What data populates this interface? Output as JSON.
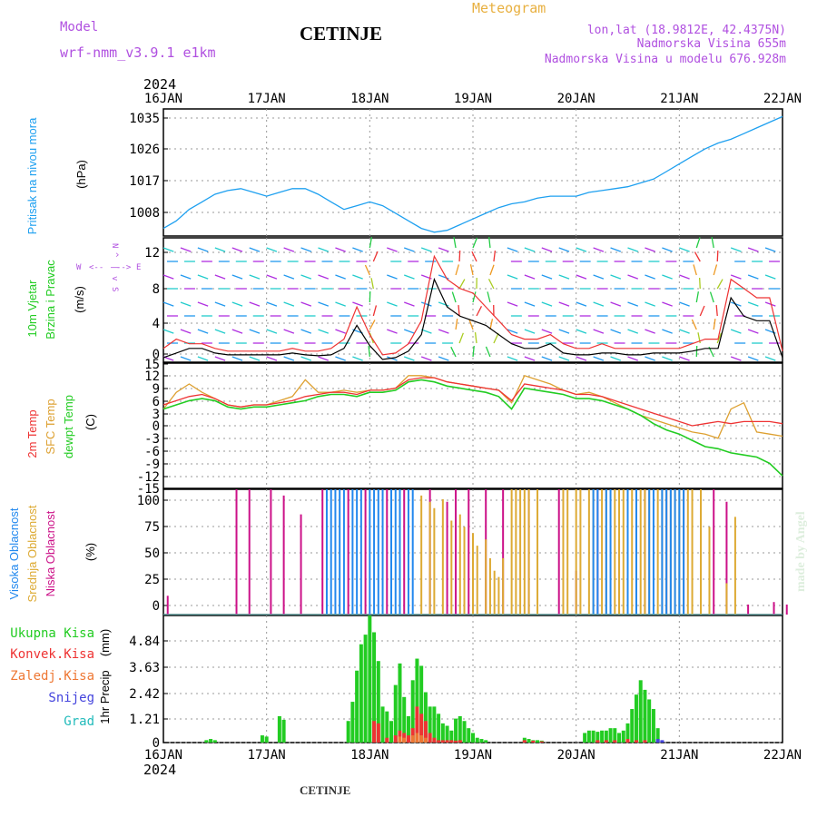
{
  "header": {
    "model_label": "Model",
    "model_name": "wrf-nmm_v3.9.1  e1km",
    "title": "CETINJE",
    "subtitle": "Meteogram",
    "lonlat": "lon,lat (18.9812E, 42.4375N)",
    "altitude": "Nadmorska Visina 655m",
    "model_altitude": "Nadmorska Visina u modelu 676.928m",
    "year": "2024",
    "footer": "CETINJE",
    "watermark": "made by Angel"
  },
  "colors": {
    "pressure": "#1ea0f0",
    "t2m": "#ee3333",
    "tsfc": "#dda030",
    "dewpoint": "#22cc22",
    "cloud_high": "#2288ee",
    "cloud_mid": "#ddaa33",
    "cloud_low": "#cc1188",
    "precip_total": "#22cc22",
    "precip_conv": "#ee3333",
    "precip_frozen": "#ee7733",
    "snow": "#4444dd",
    "hail": "#22bbbb",
    "header_purple": "#b050e0",
    "header_orange": "#e8b040"
  },
  "chart_data": [
    {
      "id": "pressure",
      "type": "line",
      "ylabel_name": "Pritisak na nivou mora",
      "ylabel_unit": "(hPa)",
      "x_ticks": [
        "16JAN",
        "17JAN",
        "18JAN",
        "19JAN",
        "20JAN",
        "21JAN",
        "22JAN"
      ],
      "yticks": [
        "1035",
        "1026",
        "1017",
        "1008"
      ],
      "ylim": [
        1003,
        1036.5
      ],
      "x": [
        0,
        3,
        6,
        9,
        12,
        15,
        18,
        21,
        24,
        27,
        30,
        33,
        36,
        39,
        42,
        45,
        48,
        51,
        54,
        57,
        60,
        63,
        66,
        69,
        72,
        75,
        78,
        81,
        84,
        87,
        90,
        93,
        96,
        99,
        102,
        105,
        108,
        111,
        114,
        117,
        120,
        123,
        126,
        129,
        132,
        135,
        138,
        141,
        144
      ],
      "series": [
        {
          "values": [
            1005,
            1007,
            1010,
            1012,
            1014,
            1015,
            1015.5,
            1014.5,
            1013.5,
            1014.5,
            1015.5,
            1015.5,
            1014,
            1012,
            1010,
            1011,
            1012,
            1011,
            1009,
            1007,
            1005,
            1004,
            1004.5,
            1006,
            1007.5,
            1009,
            1010.5,
            1011.5,
            1012,
            1013,
            1013.5,
            1013.5,
            1013.5,
            1014.5,
            1015,
            1015.5,
            1016,
            1017,
            1018,
            1020,
            1022,
            1024,
            1026,
            1027.5,
            1028.5,
            1030,
            1031.5,
            1033,
            1034.5
          ]
        }
      ]
    },
    {
      "id": "wind",
      "type": "line",
      "ylabel_name_1": "10m Vjetar",
      "ylabel_name_2": "Brzina i Pravac",
      "ylabel_unit": "(m/s)",
      "compass": [
        "N",
        "^",
        "|",
        "v",
        "S",
        "W",
        "<--",
        "-->",
        "E"
      ],
      "yticks": [
        "12",
        "8",
        "4",
        "0"
      ],
      "ylim": [
        0,
        13.5
      ],
      "x": [
        0,
        3,
        6,
        9,
        12,
        15,
        18,
        21,
        24,
        27,
        30,
        33,
        36,
        39,
        42,
        45,
        48,
        51,
        54,
        57,
        60,
        63,
        66,
        69,
        72,
        75,
        78,
        81,
        84,
        87,
        90,
        93,
        96,
        99,
        102,
        105,
        108,
        111,
        114,
        117,
        120,
        123,
        126,
        129,
        132,
        135,
        138,
        141,
        144
      ],
      "series": [
        {
          "values": [
            0.5,
            1,
            1.5,
            1.5,
            1,
            0.8,
            0.8,
            0.8,
            0.8,
            0.8,
            1,
            0.8,
            0.7,
            0.8,
            1.5,
            4,
            1.8,
            0.3,
            0.5,
            1.2,
            3,
            9,
            6,
            5,
            4.5,
            4,
            3,
            2,
            1.5,
            1.5,
            2,
            1,
            0.8,
            0.8,
            1,
            1,
            0.8,
            0.8,
            1,
            1,
            1,
            1.2,
            1.5,
            1.5,
            7,
            5,
            4.5,
            4.5,
            0.5
          ]
        },
        {
          "values": [
            1.5,
            2.5,
            2,
            2,
            1.5,
            1.2,
            1.2,
            1.2,
            1.2,
            1.2,
            1.5,
            1.2,
            1.2,
            1.5,
            2.5,
            6,
            3,
            0.8,
            1,
            2,
            4.5,
            11.5,
            9,
            8,
            7.5,
            6,
            4.5,
            3,
            2.5,
            2.5,
            3,
            2,
            1.5,
            1.5,
            2,
            1.5,
            1.5,
            1.5,
            1.5,
            1.5,
            1.5,
            2,
            2.5,
            2.5,
            9,
            8,
            7,
            7,
            1.2
          ]
        }
      ]
    },
    {
      "id": "temperature",
      "type": "line",
      "ylabel_name_1": "2m Temp",
      "ylabel_name_2": "SFC Temp",
      "ylabel_name_3": "dewpt Temp",
      "ylabel_unit": "(C)",
      "yticks": [
        "15",
        "12",
        "9",
        "6",
        "3",
        "0",
        "-3",
        "-6",
        "-9",
        "-12",
        "-15"
      ],
      "ylim": [
        -15,
        15
      ],
      "x": [
        0,
        3,
        6,
        9,
        12,
        15,
        18,
        21,
        24,
        27,
        30,
        33,
        36,
        39,
        42,
        45,
        48,
        51,
        54,
        57,
        60,
        63,
        66,
        69,
        72,
        75,
        78,
        81,
        84,
        87,
        90,
        93,
        96,
        99,
        102,
        105,
        108,
        111,
        114,
        117,
        120,
        123,
        126,
        129,
        132,
        135,
        138,
        141,
        144
      ],
      "series": [
        {
          "values": [
            5,
            6,
            7,
            7.5,
            6.5,
            5,
            4.5,
            5,
            5,
            5.5,
            6,
            7,
            7.5,
            8,
            8,
            7.5,
            8.5,
            8.5,
            9,
            11,
            11.5,
            11.5,
            10.5,
            10,
            9.5,
            9,
            8.5,
            6,
            10,
            9.5,
            9,
            8.5,
            7.5,
            7.5,
            7,
            6,
            5,
            4,
            3,
            2,
            1,
            0,
            0.5,
            1,
            0.5,
            1,
            1,
            1,
            0.5
          ]
        },
        {
          "values": [
            4,
            8,
            10,
            8,
            6.5,
            5,
            4.5,
            5,
            5,
            6,
            7,
            11,
            8,
            8,
            8.5,
            8,
            8.5,
            8.5,
            9,
            12,
            12,
            11.5,
            10.5,
            10,
            9.5,
            9,
            8.5,
            5.5,
            12,
            11,
            10,
            8.5,
            7.5,
            8,
            7,
            5.5,
            4,
            2.5,
            1.5,
            0.5,
            -0.5,
            -1.5,
            -2,
            -3,
            4,
            5.5,
            -1.5,
            -2,
            -2.5
          ]
        },
        {
          "values": [
            4,
            5,
            6,
            6.5,
            6,
            4.5,
            4,
            4.5,
            4.5,
            5,
            5.5,
            6,
            7,
            7.5,
            7.5,
            7,
            8,
            8,
            8.5,
            10.5,
            11,
            10.5,
            9.5,
            9,
            8.5,
            8,
            7,
            4,
            9,
            8.5,
            8,
            7.5,
            6.5,
            6.5,
            6,
            5,
            4,
            2.5,
            0.5,
            -1,
            -2,
            -3.5,
            -5,
            -5.5,
            -6.5,
            -7,
            -7.5,
            -9,
            -12
          ]
        }
      ]
    },
    {
      "id": "cloud",
      "type": "bar",
      "ylabel_name_1": "Visoka Oblacnost",
      "ylabel_name_2": "Srednja Oblacnost",
      "ylabel_name_3": "Niska Oblacnost",
      "ylabel_unit": "(%)",
      "yticks": [
        "100",
        "75",
        "50",
        "25",
        "0"
      ],
      "ylim": [
        0,
        100
      ],
      "series": [
        {
          "type": "low",
          "x": [
            1,
            17,
            20,
            25,
            28,
            32,
            37,
            43,
            47,
            52,
            56,
            62,
            66,
            68,
            71,
            75,
            79,
            85,
            92,
            96,
            101,
            106,
            112,
            117,
            121,
            128,
            131,
            136,
            142,
            145
          ],
          "values": [
            15,
            100,
            100,
            100,
            95,
            80,
            100,
            100,
            100,
            100,
            100,
            100,
            90,
            100,
            100,
            100,
            100,
            100,
            100,
            35,
            100,
            60,
            100,
            100,
            100,
            100,
            90,
            8,
            10,
            8
          ]
        },
        {
          "type": "mid",
          "x": [
            60,
            62,
            63,
            65,
            67,
            69,
            70,
            72,
            73,
            75,
            76,
            77,
            78,
            79,
            81,
            82,
            83,
            84,
            85,
            87,
            93,
            94,
            96,
            97,
            99,
            100,
            102,
            103,
            105,
            106,
            107,
            108,
            109,
            110,
            111,
            112,
            113,
            115,
            116,
            117,
            118,
            119,
            120,
            121,
            122,
            123,
            125,
            127,
            131,
            133
          ],
          "values": [
            95,
            90,
            85,
            92,
            75,
            80,
            70,
            65,
            55,
            60,
            45,
            35,
            30,
            45,
            100,
            100,
            100,
            100,
            100,
            100,
            100,
            100,
            100,
            100,
            100,
            100,
            100,
            100,
            100,
            100,
            100,
            100,
            100,
            100,
            100,
            100,
            100,
            100,
            100,
            100,
            100,
            100,
            100,
            100,
            100,
            100,
            100,
            70,
            25,
            78
          ]
        },
        {
          "type": "high",
          "x": [
            38,
            39,
            40,
            41,
            42,
            44,
            45,
            46,
            48,
            49,
            50,
            51,
            53,
            54,
            55,
            57,
            58,
            100,
            101,
            103,
            104,
            108,
            110,
            113,
            114,
            116,
            117,
            118,
            119,
            120,
            121
          ],
          "values": [
            100,
            100,
            100,
            100,
            100,
            100,
            100,
            100,
            100,
            100,
            100,
            100,
            100,
            100,
            100,
            100,
            100,
            100,
            100,
            100,
            100,
            100,
            100,
            100,
            100,
            100,
            100,
            100,
            100,
            100,
            100
          ]
        }
      ]
    },
    {
      "id": "precip",
      "type": "bar",
      "ylabel_name": "1hr Precip",
      "ylabel_unit": "(mm)",
      "yticks": [
        "4.84",
        "3.63",
        "2.42",
        "1.21",
        "0"
      ],
      "ylim": [
        0,
        5.3
      ],
      "legend": [
        "Ukupna Kisa",
        "Konvek.Kisa",
        "Zaledj.Kisa",
        "Snijeg",
        "Grad"
      ],
      "series": [
        {
          "type": "total",
          "x": [
            10,
            11,
            12,
            23,
            24,
            27,
            28,
            43,
            44,
            45,
            46,
            47,
            48,
            49,
            50,
            51,
            52,
            53,
            54,
            55,
            56,
            57,
            58,
            59,
            60,
            61,
            62,
            63,
            64,
            65,
            66,
            67,
            68,
            69,
            70,
            71,
            72,
            73,
            74,
            75,
            84,
            85,
            86,
            87,
            88,
            98,
            99,
            100,
            101,
            102,
            103,
            104,
            105,
            106,
            107,
            108,
            109,
            110,
            111,
            112,
            113,
            114,
            115
          ],
          "values": [
            0.1,
            0.15,
            0.1,
            0.3,
            0.25,
            1.1,
            0.95,
            0.9,
            1.7,
            3,
            4.1,
            4.5,
            5.3,
            4.6,
            3.4,
            1.5,
            1.3,
            0.9,
            2.4,
            3.3,
            1.9,
            1.1,
            2.6,
            3.5,
            3.2,
            2.1,
            1.5,
            1.5,
            1.2,
            0.8,
            0.7,
            0.5,
            1,
            1.1,
            0.9,
            0.6,
            0.4,
            0.2,
            0.15,
            0.1,
            0.2,
            0.15,
            0.1,
            0.1,
            0.08,
            0.4,
            0.5,
            0.5,
            0.45,
            0.5,
            0.5,
            0.6,
            0.6,
            0.4,
            0.5,
            0.8,
            1.4,
            2,
            2.6,
            2.2,
            1.8,
            1.4,
            0.6
          ]
        },
        {
          "type": "conv",
          "x": [
            49,
            50,
            52,
            54,
            55,
            56,
            57,
            58,
            59,
            60,
            61,
            62,
            63,
            64,
            65,
            66,
            67,
            68,
            69,
            84,
            86,
            88,
            101,
            103,
            105,
            108,
            110,
            112
          ],
          "values": [
            0.9,
            0.8,
            0.2,
            0.3,
            0.5,
            0.4,
            0.3,
            0.6,
            1.5,
            1.2,
            0.9,
            0.4,
            0.2,
            0.1,
            0.1,
            0.1,
            0.1,
            0.08,
            0.1,
            0.1,
            0.08,
            0.05,
            0.1,
            0.1,
            0.1,
            0.15,
            0.1,
            0.1
          ]
        },
        {
          "type": "frozen",
          "x": [
            55,
            56,
            58,
            59,
            60,
            61
          ],
          "values": [
            0.25,
            0.2,
            0.3,
            0.4,
            0.3,
            0.2
          ]
        },
        {
          "type": "snow",
          "x": [
            115,
            116
          ],
          "values": [
            0.15,
            0.1
          ]
        }
      ]
    }
  ]
}
